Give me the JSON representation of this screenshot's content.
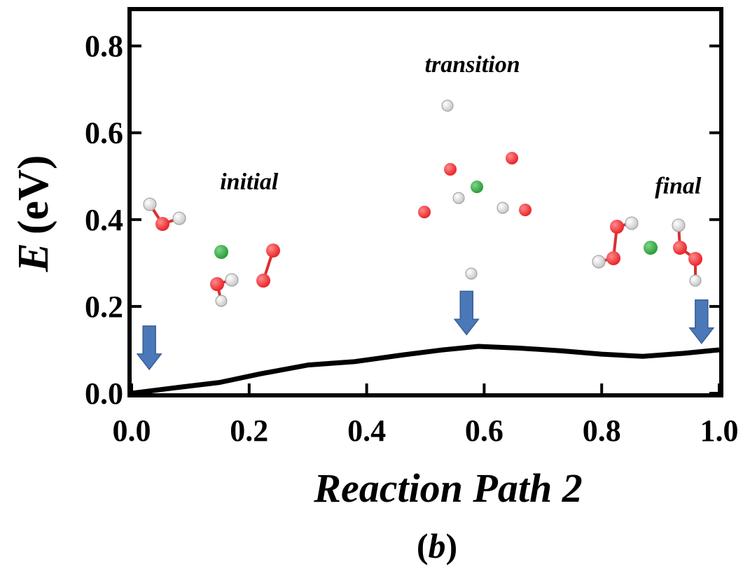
{
  "chart_data": {
    "type": "line",
    "xlabel": "Reaction Path 2",
    "ylabel_symbol": "E",
    "ylabel_unit": "(eV)",
    "caption": "(b)",
    "caption_open": "(",
    "caption_letter": "b",
    "caption_close": ")",
    "xlim": [
      0.0,
      1.0
    ],
    "ylim": [
      0.0,
      0.88
    ],
    "x_ticks": [
      "0.0",
      "0.2",
      "0.4",
      "0.6",
      "0.8",
      "1.0"
    ],
    "y_ticks": [
      "0.0",
      "0.2",
      "0.4",
      "0.6",
      "0.8"
    ],
    "grid": false,
    "legend": "none",
    "series": [
      {
        "color": "#000000",
        "x": [
          0.0,
          0.07,
          0.15,
          0.22,
          0.3,
          0.38,
          0.46,
          0.53,
          0.59,
          0.66,
          0.73,
          0.8,
          0.87,
          0.94,
          1.0
        ],
        "y": [
          0.0,
          0.012,
          0.025,
          0.045,
          0.065,
          0.073,
          0.088,
          0.1,
          0.108,
          0.104,
          0.098,
          0.09,
          0.085,
          0.092,
          0.1
        ]
      }
    ],
    "annotations": [
      {
        "text": "initial",
        "x": 0.2,
        "y": 0.47
      },
      {
        "text": "transition",
        "x": 0.58,
        "y": 0.74
      },
      {
        "text": "final",
        "x": 0.93,
        "y": 0.46
      }
    ],
    "arrows": [
      {
        "x": 0.03,
        "y_top": 0.155,
        "y_bottom": 0.055
      },
      {
        "x": 0.57,
        "y_top": 0.235,
        "y_bottom": 0.135
      },
      {
        "x": 0.97,
        "y_top": 0.215,
        "y_bottom": 0.115
      }
    ],
    "arrow_color": "#4a78b8",
    "atom_colors": {
      "oxygen": "#e8262b",
      "hydrogen": "#ffffff",
      "metal": "#2a9d3a"
    }
  }
}
